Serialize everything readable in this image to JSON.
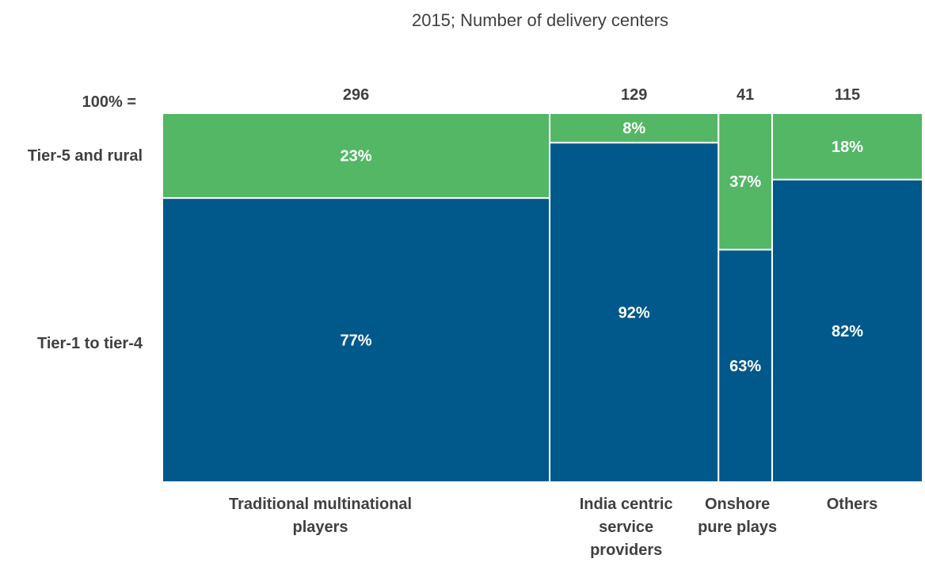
{
  "chart_data": {
    "type": "mekko",
    "subtitle": "2015; Number of delivery centers",
    "totals_prefix": "100% =",
    "rows": [
      "Tier-5 and rural",
      "Tier-1 to tier-4"
    ],
    "categories": [
      {
        "name": [
          "Traditional multinational",
          "players"
        ],
        "total": "296",
        "total_value": 296,
        "shares": [
          "23%",
          "77%"
        ],
        "share_values": [
          23,
          77
        ]
      },
      {
        "name": [
          "India centric",
          "service",
          "providers"
        ],
        "total": "129",
        "total_value": 129,
        "shares": [
          "8%",
          "92%"
        ],
        "share_values": [
          8,
          92
        ]
      },
      {
        "name": [
          "Onshore",
          "pure plays"
        ],
        "total": "41",
        "total_value": 41,
        "shares": [
          "37%",
          "63%"
        ],
        "share_values": [
          37,
          63
        ]
      },
      {
        "name": [
          "Others"
        ],
        "total": "115",
        "total_value": 115,
        "shares": [
          "18%",
          "82%"
        ],
        "share_values": [
          18,
          82
        ]
      }
    ],
    "colors": {
      "Tier-5 and rural": "#53b766",
      "Tier-1 to tier-4": "#01588a"
    }
  }
}
